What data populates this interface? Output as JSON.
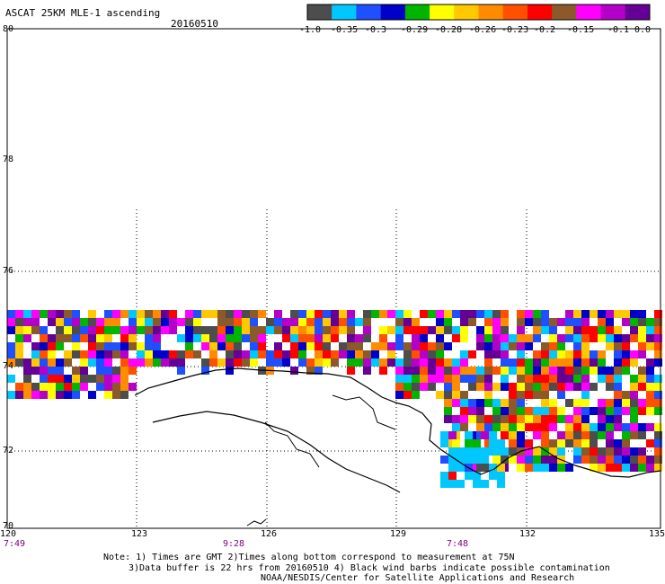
{
  "header": {
    "title": "ASCAT 25KM MLE-1 ascending",
    "date": "20160510"
  },
  "colorbar": {
    "colors": [
      "#4d4d4d",
      "#00c8ff",
      "#1e50ff",
      "#0000c8",
      "#00b400",
      "#ffff00",
      "#ffc800",
      "#ff8c00",
      "#ff5000",
      "#ff0000",
      "#8b5a2b",
      "#ff00ff",
      "#b400c8",
      "#640096"
    ],
    "labels": [
      "-1.0",
      "-0.35",
      "-0.3",
      "-0.29",
      "-0.28",
      "-0.26",
      "-0.23",
      "-0.2",
      "-0.15",
      "-0.1",
      "0.0"
    ]
  },
  "axes": {
    "lat_labels": [
      "80",
      "78",
      "76",
      "74",
      "72",
      "70"
    ],
    "lon_labels": [
      "120",
      "123",
      "126",
      "129",
      "132",
      "135"
    ],
    "time_labels": [
      "7:49",
      "9:28",
      "7:48"
    ]
  },
  "notes": {
    "line1": "Note: 1) Times are GMT 2)Times along bottom correspond to measurement at 75N",
    "line2": "3)Data buffer is 22 hrs from 20160510 4) Black wind barbs indicate possible contamination",
    "line3": "NOAA/NESDIS/Center for Satellite Applications and Research"
  }
}
